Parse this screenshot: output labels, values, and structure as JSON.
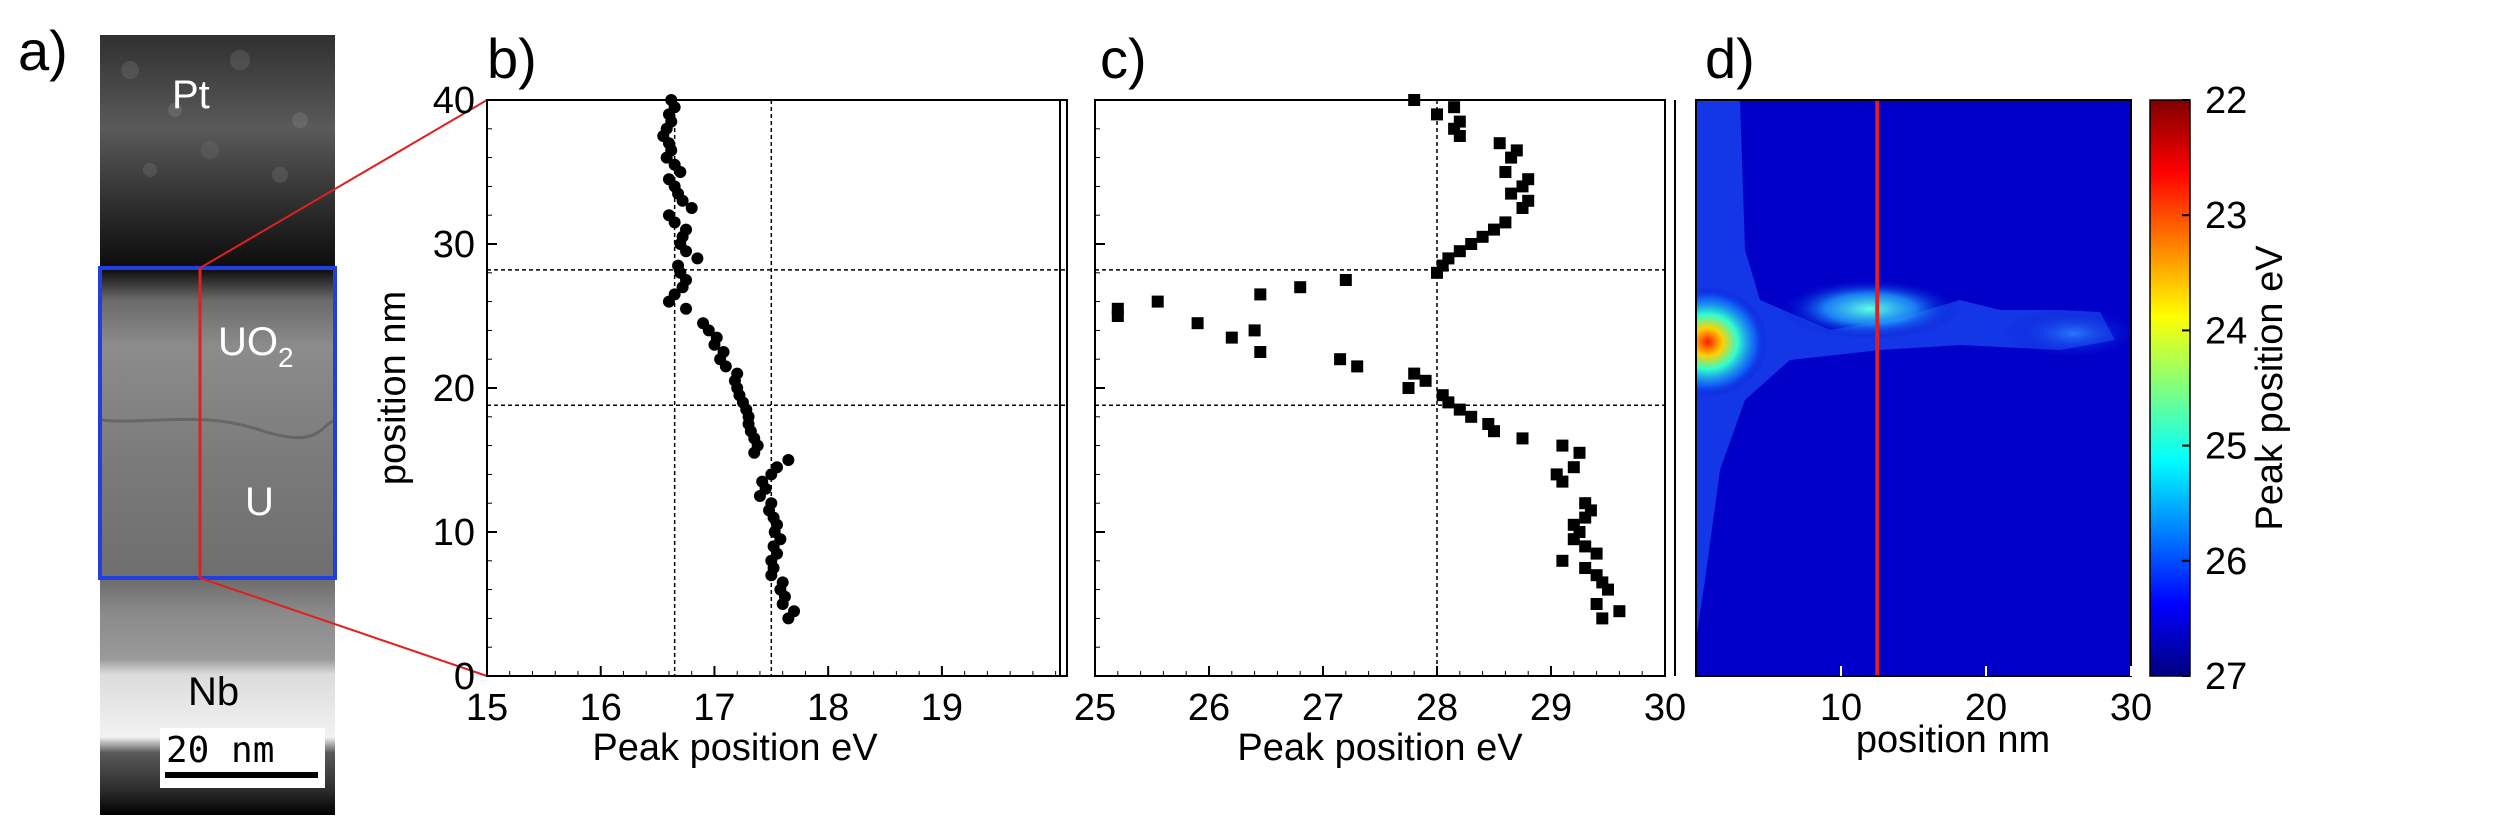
{
  "panel_labels": {
    "a": "a)",
    "b": "b)",
    "c": "c)",
    "d": "d)"
  },
  "panel_a": {
    "layers": {
      "pt": "Pt",
      "uo2_main": "UO",
      "uo2_sub": "2",
      "u": "U",
      "nb": "Nb"
    },
    "scale_bar": "20 nm"
  },
  "colors": {
    "box": "#1f3fe0",
    "guide": "#e02020",
    "marker": "#000000"
  },
  "chart_data": [
    {
      "type": "scatter",
      "panel": "b)",
      "xlabel": "Peak position eV",
      "ylabel": "position nm",
      "xlim": [
        15,
        20.1
      ],
      "ylim": [
        0,
        40
      ],
      "xticks": [
        "15",
        "16",
        "17",
        "18",
        "19"
      ],
      "yticks": [
        "0",
        "10",
        "20",
        "30",
        "40"
      ],
      "guide_x": [
        16.65,
        17.5
      ],
      "guide_y": [
        28.2,
        18.8
      ],
      "marker": "circle",
      "points": [
        [
          17.65,
          4.0
        ],
        [
          17.7,
          4.5
        ],
        [
          17.6,
          5.0
        ],
        [
          17.62,
          5.5
        ],
        [
          17.58,
          6.0
        ],
        [
          17.6,
          6.5
        ],
        [
          17.5,
          7.0
        ],
        [
          17.52,
          7.5
        ],
        [
          17.5,
          8.0
        ],
        [
          17.55,
          8.5
        ],
        [
          17.52,
          9.0
        ],
        [
          17.58,
          9.5
        ],
        [
          17.53,
          10.0
        ],
        [
          17.55,
          10.5
        ],
        [
          17.52,
          11.0
        ],
        [
          17.48,
          11.5
        ],
        [
          17.5,
          12.0
        ],
        [
          17.4,
          12.5
        ],
        [
          17.45,
          13.0
        ],
        [
          17.42,
          13.5
        ],
        [
          17.5,
          14.0
        ],
        [
          17.55,
          14.5
        ],
        [
          17.65,
          15.0
        ],
        [
          17.35,
          15.5
        ],
        [
          17.38,
          16.0
        ],
        [
          17.35,
          16.5
        ],
        [
          17.32,
          17.0
        ],
        [
          17.3,
          17.5
        ],
        [
          17.3,
          18.0
        ],
        [
          17.28,
          18.5
        ],
        [
          17.25,
          19.0
        ],
        [
          17.22,
          19.5
        ],
        [
          17.2,
          20.0
        ],
        [
          17.18,
          20.5
        ],
        [
          17.2,
          21.0
        ],
        [
          17.1,
          21.5
        ],
        [
          17.05,
          22.0
        ],
        [
          17.08,
          22.5
        ],
        [
          17.0,
          23.0
        ],
        [
          17.02,
          23.5
        ],
        [
          16.95,
          24.0
        ],
        [
          16.9,
          24.5
        ],
        [
          16.75,
          25.5
        ],
        [
          16.6,
          26.0
        ],
        [
          16.65,
          26.5
        ],
        [
          16.72,
          27.0
        ],
        [
          16.75,
          27.5
        ],
        [
          16.7,
          28.0
        ],
        [
          16.68,
          28.5
        ],
        [
          16.85,
          29.0
        ],
        [
          16.75,
          29.5
        ],
        [
          16.7,
          30.0
        ],
        [
          16.72,
          30.5
        ],
        [
          16.75,
          31.0
        ],
        [
          16.65,
          31.5
        ],
        [
          16.6,
          32.0
        ],
        [
          16.8,
          32.5
        ],
        [
          16.72,
          33.0
        ],
        [
          16.68,
          33.5
        ],
        [
          16.65,
          34.0
        ],
        [
          16.6,
          34.5
        ],
        [
          16.7,
          35.0
        ],
        [
          16.65,
          35.5
        ],
        [
          16.58,
          36.0
        ],
        [
          16.62,
          36.5
        ],
        [
          16.6,
          37.0
        ],
        [
          16.55,
          37.5
        ],
        [
          16.58,
          38.0
        ],
        [
          16.62,
          38.5
        ],
        [
          16.6,
          39.0
        ],
        [
          16.65,
          39.5
        ],
        [
          16.62,
          40.0
        ]
      ]
    },
    {
      "type": "scatter",
      "panel": "c)",
      "xlabel": "Peak position eV",
      "ylabel": "",
      "xlim": [
        25,
        30
      ],
      "ylim": [
        0,
        40
      ],
      "xticks": [
        "25",
        "26",
        "27",
        "28",
        "29",
        "30"
      ],
      "guide_x": [
        28.0
      ],
      "guide_y": [
        28.2,
        18.8
      ],
      "marker": "square",
      "points": [
        [
          29.45,
          4.0
        ],
        [
          29.6,
          4.5
        ],
        [
          29.4,
          5.0
        ],
        [
          29.5,
          6.0
        ],
        [
          29.45,
          6.5
        ],
        [
          29.4,
          7.0
        ],
        [
          29.3,
          7.5
        ],
        [
          29.1,
          8.0
        ],
        [
          29.4,
          8.5
        ],
        [
          29.3,
          9.0
        ],
        [
          29.2,
          9.5
        ],
        [
          29.25,
          10.0
        ],
        [
          29.2,
          10.5
        ],
        [
          29.3,
          11.0
        ],
        [
          29.35,
          11.5
        ],
        [
          29.3,
          12.0
        ],
        [
          29.1,
          13.5
        ],
        [
          29.05,
          14.0
        ],
        [
          29.2,
          14.5
        ],
        [
          29.25,
          15.5
        ],
        [
          29.1,
          16.0
        ],
        [
          28.75,
          16.5
        ],
        [
          28.5,
          17.0
        ],
        [
          28.45,
          17.5
        ],
        [
          28.3,
          18.0
        ],
        [
          28.2,
          18.5
        ],
        [
          28.1,
          19.0
        ],
        [
          28.05,
          19.5
        ],
        [
          27.75,
          20.0
        ],
        [
          27.9,
          20.5
        ],
        [
          27.8,
          21.0
        ],
        [
          27.3,
          21.5
        ],
        [
          27.15,
          22.0
        ],
        [
          26.45,
          22.5
        ],
        [
          26.2,
          23.5
        ],
        [
          26.4,
          24.0
        ],
        [
          25.9,
          24.5
        ],
        [
          25.2,
          25.0
        ],
        [
          25.55,
          26.0
        ],
        [
          25.2,
          25.5
        ],
        [
          26.45,
          26.5
        ],
        [
          26.8,
          27.0
        ],
        [
          27.2,
          27.5
        ],
        [
          28.0,
          28.0
        ],
        [
          28.05,
          28.5
        ],
        [
          28.1,
          29.0
        ],
        [
          28.2,
          29.5
        ],
        [
          28.3,
          30.0
        ],
        [
          28.4,
          30.5
        ],
        [
          28.5,
          31.0
        ],
        [
          28.6,
          31.5
        ],
        [
          28.75,
          32.5
        ],
        [
          28.8,
          33.0
        ],
        [
          28.65,
          33.5
        ],
        [
          28.75,
          34.0
        ],
        [
          28.8,
          34.5
        ],
        [
          28.6,
          35.0
        ],
        [
          28.65,
          36.0
        ],
        [
          28.7,
          36.5
        ],
        [
          28.55,
          37.0
        ],
        [
          28.2,
          37.5
        ],
        [
          28.15,
          38.0
        ],
        [
          28.2,
          38.5
        ],
        [
          28.0,
          39.0
        ],
        [
          28.15,
          39.5
        ],
        [
          27.8,
          40.0
        ]
      ]
    },
    {
      "type": "heatmap",
      "panel": "d)",
      "xlabel": "position  nm",
      "xlim": [
        0,
        30
      ],
      "ylim": [
        0,
        40
      ],
      "xticks": [
        "10",
        "20",
        "30"
      ],
      "marker_line_x": 12.5,
      "colorbar": {
        "label": "Peak position eV",
        "min": 22,
        "max": 27,
        "ticks": [
          "22",
          "23",
          "24",
          "25",
          "26",
          "27"
        ]
      },
      "hotspots": [
        {
          "x": 0.8,
          "y": 23.2,
          "peak_eV": 22.6
        },
        {
          "x": 12.0,
          "y": 25.5,
          "peak_eV": 25.3
        },
        {
          "x": 26.0,
          "y": 23.8,
          "peak_eV": 25.4
        }
      ]
    }
  ]
}
